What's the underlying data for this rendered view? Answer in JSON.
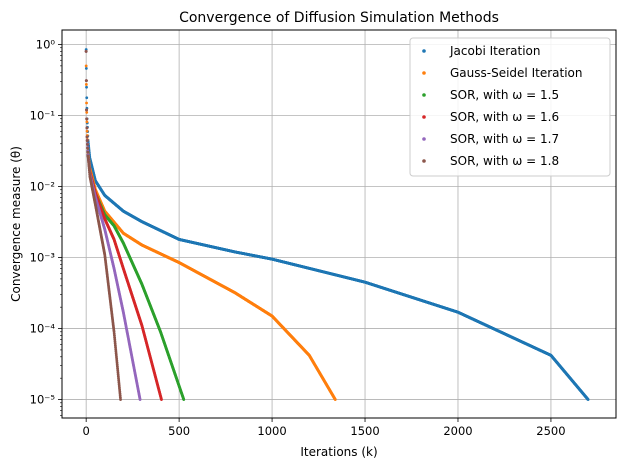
{
  "chart_data": {
    "type": "scatter",
    "title": "Convergence of Diffusion Simulation Methods",
    "xlabel": "Iterations (k)",
    "ylabel": "Convergence measure (θ)",
    "y_scale": "log",
    "xlim": [
      -130,
      2850
    ],
    "ylim": [
      5.5e-06,
      1.6
    ],
    "x_ticks": [
      0,
      500,
      1000,
      1500,
      2000,
      2500
    ],
    "x_tick_labels": [
      "0",
      "500",
      "1000",
      "1500",
      "2000",
      "2500"
    ],
    "y_ticks": [
      1e-05,
      0.0001,
      0.001,
      0.01,
      0.1,
      1
    ],
    "y_tick_labels": [
      "10⁻⁵",
      "10⁻⁴",
      "10⁻³",
      "10⁻²",
      "10⁻¹",
      "10⁰"
    ],
    "grid": true,
    "legend_position": "top-right",
    "series": [
      {
        "name": "Jacobi Iteration",
        "color": "#1f77b4",
        "points": [
          [
            0,
            0.85
          ],
          [
            2,
            0.25
          ],
          [
            5,
            0.09
          ],
          [
            10,
            0.045
          ],
          [
            20,
            0.025
          ],
          [
            50,
            0.012
          ],
          [
            100,
            0.0075
          ],
          [
            200,
            0.0045
          ],
          [
            300,
            0.0032
          ],
          [
            500,
            0.0018
          ],
          [
            800,
            0.0012
          ],
          [
            1000,
            0.00095
          ],
          [
            1500,
            0.00045
          ],
          [
            2000,
            0.00017
          ],
          [
            2500,
            4.2e-05
          ],
          [
            2700,
            1e-05
          ]
        ]
      },
      {
        "name": "Gauss-Seidel Iteration",
        "color": "#ff7f0e",
        "points": [
          [
            0,
            0.5
          ],
          [
            2,
            0.15
          ],
          [
            5,
            0.06
          ],
          [
            10,
            0.03
          ],
          [
            20,
            0.018
          ],
          [
            50,
            0.009
          ],
          [
            100,
            0.0045
          ],
          [
            200,
            0.0022
          ],
          [
            300,
            0.0015
          ],
          [
            500,
            0.00085
          ],
          [
            800,
            0.00032
          ],
          [
            1000,
            0.00015
          ],
          [
            1200,
            4.2e-05
          ],
          [
            1340,
            1e-05
          ]
        ]
      },
      {
        "name": "SOR, with ω = 1.5",
        "color": "#2ca02c",
        "points": [
          [
            0,
            0.8
          ],
          [
            2,
            0.12
          ],
          [
            5,
            0.05
          ],
          [
            10,
            0.028
          ],
          [
            20,
            0.016
          ],
          [
            50,
            0.008
          ],
          [
            100,
            0.004
          ],
          [
            150,
            0.0028
          ],
          [
            200,
            0.0016
          ],
          [
            300,
            0.00042
          ],
          [
            400,
            9e-05
          ],
          [
            525,
            1e-05
          ]
        ]
      },
      {
        "name": "SOR, with ω = 1.6",
        "color": "#d62728",
        "points": [
          [
            0,
            0.8
          ],
          [
            2,
            0.12
          ],
          [
            5,
            0.05
          ],
          [
            10,
            0.028
          ],
          [
            20,
            0.016
          ],
          [
            50,
            0.008
          ],
          [
            100,
            0.0035
          ],
          [
            150,
            0.0018
          ],
          [
            200,
            0.0007
          ],
          [
            300,
            0.00011
          ],
          [
            405,
            1e-05
          ]
        ]
      },
      {
        "name": "SOR, with ω = 1.7",
        "color": "#9467bd",
        "points": [
          [
            0,
            0.8
          ],
          [
            2,
            0.12
          ],
          [
            5,
            0.05
          ],
          [
            10,
            0.028
          ],
          [
            20,
            0.015
          ],
          [
            50,
            0.007
          ],
          [
            100,
            0.0025
          ],
          [
            150,
            0.0007
          ],
          [
            200,
            0.00017
          ],
          [
            290,
            1e-05
          ]
        ]
      },
      {
        "name": "SOR, with ω = 1.8",
        "color": "#8c564b",
        "points": [
          [
            0,
            0.8
          ],
          [
            2,
            0.12
          ],
          [
            5,
            0.05
          ],
          [
            10,
            0.027
          ],
          [
            20,
            0.014
          ],
          [
            50,
            0.0055
          ],
          [
            100,
            0.0011
          ],
          [
            150,
            9e-05
          ],
          [
            185,
            1e-05
          ]
        ]
      }
    ]
  }
}
